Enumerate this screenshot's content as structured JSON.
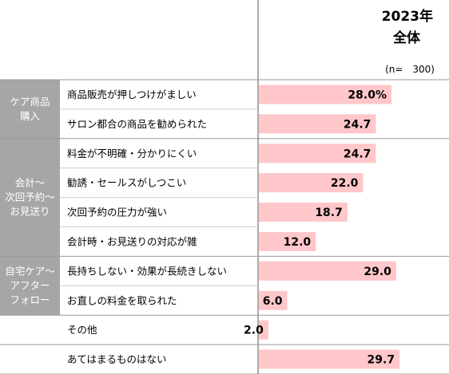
{
  "header": {
    "year": "2023年",
    "segment": "全体",
    "sample": "(n=　300)"
  },
  "colors": {
    "bar": "#ffc7ca",
    "group_bg": "#a6a6a6",
    "separator": "#9a9a9a"
  },
  "chart_data": {
    "type": "bar",
    "orientation": "horizontal",
    "xlim": [
      0,
      100
    ],
    "groups": [
      {
        "name": "ケア商品\n購入",
        "count": 2
      },
      {
        "name": "会計～\n次回予約～\nお見送り",
        "count": 4
      },
      {
        "name": "自宅ケア～\nアフター\nフォロー",
        "count": 2
      },
      {
        "name": "",
        "count": 1
      },
      {
        "name": "",
        "count": 1
      }
    ],
    "categories": [
      "商品販売が押しつけがましい",
      "サロン都合の商品を勧められた",
      "料金が不明確・分かりにくい",
      "勧誘・セールスがしつこい",
      "次回予約の圧力が強い",
      "会計時・お見送りの対応が雑",
      "長持ちしない・効果が長続きしない",
      "お直しの料金を取られた",
      "その他",
      "あてはまるものはない"
    ],
    "values": [
      28.0,
      24.7,
      24.7,
      22.0,
      18.7,
      12.0,
      29.0,
      6.0,
      2.0,
      29.7
    ],
    "value_labels": [
      "28.0%",
      "24.7",
      "24.7",
      "22.0",
      "18.7",
      "12.0",
      "29.0",
      "6.0",
      "2.0",
      "29.7"
    ]
  }
}
